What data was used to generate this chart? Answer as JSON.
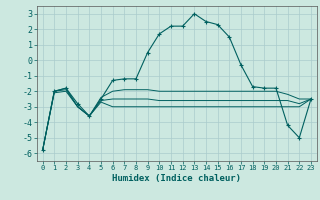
{
  "title": "",
  "xlabel": "Humidex (Indice chaleur)",
  "background_color": "#cce8e0",
  "grid_color": "#aacccc",
  "line_color": "#006060",
  "xlim": [
    -0.5,
    23.5
  ],
  "ylim": [
    -6.5,
    3.5
  ],
  "yticks": [
    -6,
    -5,
    -4,
    -3,
    -2,
    -1,
    0,
    1,
    2,
    3
  ],
  "xticks": [
    0,
    1,
    2,
    3,
    4,
    5,
    6,
    7,
    8,
    9,
    10,
    11,
    12,
    13,
    14,
    15,
    16,
    17,
    18,
    19,
    20,
    21,
    22,
    23
  ],
  "line1_x": [
    0,
    1,
    2,
    3,
    4,
    5,
    6,
    7,
    8,
    9,
    10,
    11,
    12,
    13,
    14,
    15,
    16,
    17,
    18,
    19,
    20,
    21,
    22,
    23
  ],
  "line1_y": [
    -5.8,
    -2.0,
    -1.8,
    -2.8,
    -3.6,
    -2.5,
    -1.3,
    -1.2,
    -1.2,
    0.5,
    1.7,
    2.2,
    2.2,
    3.0,
    2.5,
    2.3,
    1.5,
    -0.3,
    -1.7,
    -1.8,
    -1.8,
    -4.2,
    -5.0,
    -2.5
  ],
  "line2_x": [
    0,
    1,
    2,
    3,
    4,
    5,
    6,
    7,
    8,
    9,
    10,
    11,
    12,
    13,
    14,
    15,
    16,
    17,
    18,
    19,
    20,
    21,
    22,
    23
  ],
  "line2_y": [
    -5.8,
    -2.0,
    -1.8,
    -3.0,
    -3.6,
    -2.4,
    -2.0,
    -1.9,
    -1.9,
    -1.9,
    -2.0,
    -2.0,
    -2.0,
    -2.0,
    -2.0,
    -2.0,
    -2.0,
    -2.0,
    -2.0,
    -2.0,
    -2.0,
    -2.2,
    -2.5,
    -2.5
  ],
  "line3_x": [
    0,
    1,
    2,
    3,
    4,
    5,
    6,
    7,
    8,
    9,
    10,
    11,
    12,
    13,
    14,
    15,
    16,
    17,
    18,
    19,
    20,
    21,
    22,
    23
  ],
  "line3_y": [
    -5.8,
    -2.0,
    -1.9,
    -3.0,
    -3.6,
    -2.6,
    -2.5,
    -2.5,
    -2.5,
    -2.5,
    -2.6,
    -2.6,
    -2.6,
    -2.6,
    -2.6,
    -2.6,
    -2.6,
    -2.6,
    -2.6,
    -2.6,
    -2.6,
    -2.6,
    -2.8,
    -2.5
  ],
  "line4_x": [
    0,
    1,
    2,
    3,
    4,
    5,
    6,
    7,
    8,
    9,
    10,
    11,
    12,
    13,
    14,
    15,
    16,
    17,
    18,
    19,
    20,
    21,
    22,
    23
  ],
  "line4_y": [
    -5.8,
    -2.1,
    -2.0,
    -3.0,
    -3.6,
    -2.7,
    -3.0,
    -3.0,
    -3.0,
    -3.0,
    -3.0,
    -3.0,
    -3.0,
    -3.0,
    -3.0,
    -3.0,
    -3.0,
    -3.0,
    -3.0,
    -3.0,
    -3.0,
    -3.0,
    -3.0,
    -2.5
  ],
  "xlabel_fontsize": 6.5,
  "ytick_fontsize": 6.0,
  "xtick_fontsize": 5.0
}
